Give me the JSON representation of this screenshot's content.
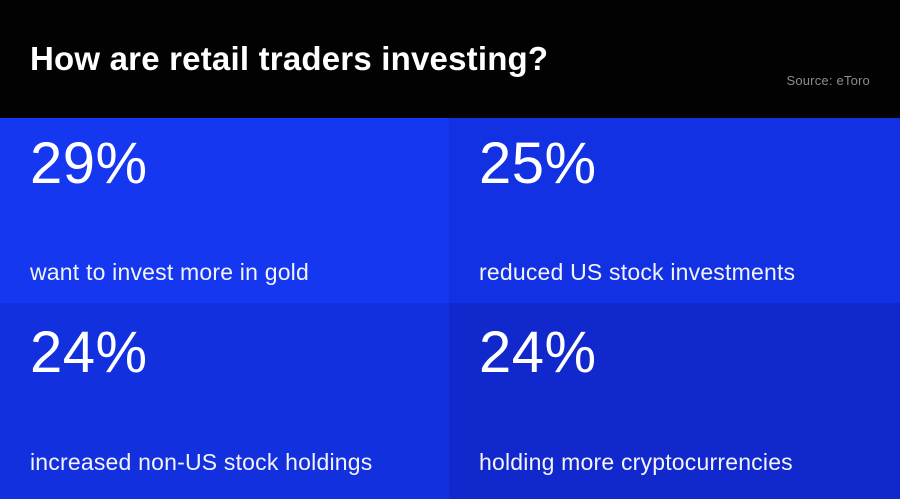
{
  "header": {
    "title": "How are retail traders investing?",
    "source": "Source: eToro"
  },
  "colors": {
    "header_background": "#020202",
    "title_text": "#ffffff",
    "source_text": "#8c8c8c",
    "tile_value_text": "#ffffff",
    "tile_label_text": "#f3f4fd",
    "tile_gold": "#1537f0",
    "tile_us_stocks": "#1231e3",
    "tile_non_us_stocks": "#1330df",
    "tile_crypto": "#1128cd"
  },
  "tiles": [
    {
      "value": "29%",
      "label": "want to invest more in gold",
      "color": "#1537f0"
    },
    {
      "value": "25%",
      "label": "reduced US stock investments",
      "color": "#1231e3"
    },
    {
      "value": "24%",
      "label": "increased non-US stock holdings",
      "color": "#1330df"
    },
    {
      "value": "24%",
      "label": "holding more cryptocurrencies",
      "color": "#1128cd"
    }
  ],
  "chart_data": {
    "type": "table",
    "title": "How are retail traders investing?",
    "source": "Source: eToro",
    "categories": [
      "want to invest more in gold",
      "reduced US stock investments",
      "increased non-US stock holdings",
      "holding more cryptocurrencies"
    ],
    "values": [
      29,
      25,
      24,
      24
    ],
    "unit": "%",
    "layout": "2x2 KPI tile grid, black title band on top, blue tiles with slightly varying shades"
  }
}
